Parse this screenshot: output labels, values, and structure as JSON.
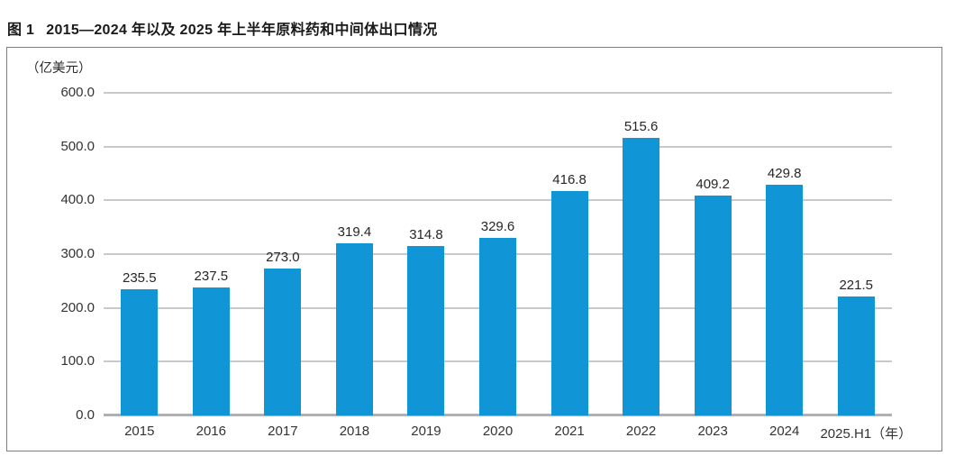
{
  "title": {
    "figure_label": "图 1",
    "text": "2015—2024 年以及 2025 年上半年原料药和中间体出口情况"
  },
  "chart_data": {
    "type": "bar",
    "title": "图 1 2015—2024 年以及 2025 年上半年原料药和中间体出口情况",
    "unit_label": "（亿美元）",
    "xlabel_suffix": "（年）",
    "categories": [
      "2015",
      "2016",
      "2017",
      "2018",
      "2019",
      "2020",
      "2021",
      "2022",
      "2023",
      "2024",
      "2025.H1（年）"
    ],
    "values": [
      235.5,
      237.5,
      273.0,
      319.4,
      314.8,
      329.6,
      416.8,
      515.6,
      409.2,
      429.8,
      221.5
    ],
    "value_label_decimals": 1,
    "ylim": [
      0,
      600
    ],
    "ytick_labels": [
      "600.0",
      "500.0",
      "400.0",
      "300.0",
      "200.0",
      "100.0",
      "0.0"
    ],
    "grid": "horizontal",
    "legend": "none",
    "colors": {
      "bar": "#1095d7",
      "gridline": "#c9c9c9",
      "axis_baseline": "#b0b0b0",
      "box_border": "#7f7f7f",
      "text": "#333333"
    }
  }
}
